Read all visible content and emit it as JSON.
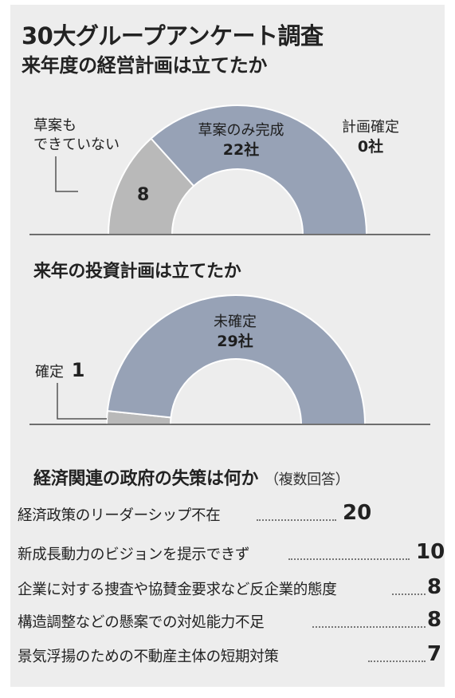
{
  "header": {
    "title": "30大グループアンケート調査",
    "subtitle": "来年度の経営計画は立てたか"
  },
  "chart1": {
    "label_none_line1": "草案も",
    "label_none_line2": "できていない",
    "label_none_value": "8",
    "label_draft_name": "草案のみ完成",
    "label_draft_value": "22社",
    "label_confirmed_name": "計画確定",
    "label_confirmed_value": "0社"
  },
  "chart2": {
    "title": "来年の投資計画は立てたか",
    "label_undecided_name": "未確定",
    "label_undecided_value": "29社",
    "label_decided_name": "確定",
    "label_decided_value": "1"
  },
  "section3": {
    "title": "経済関連の政府の失策は何か",
    "note": "（複数回答）"
  },
  "chart_data": [
    {
      "type": "pie",
      "title": "来年度の経営計画は立てたか",
      "categories": [
        "草案もできていない",
        "草案のみ完成",
        "計画確定"
      ],
      "values": [
        8,
        22,
        0
      ],
      "colors": [
        "#b9b9b9",
        "#97a2b6",
        "#97a2b6"
      ]
    },
    {
      "type": "pie",
      "title": "来年の投資計画は立てたか",
      "categories": [
        "確定",
        "未確定"
      ],
      "values": [
        1,
        29
      ],
      "colors": [
        "#b9b9b9",
        "#97a2b6"
      ]
    },
    {
      "type": "table",
      "title": "経済関連の政府の失策は何か（複数回答）",
      "categories": [
        "経済政策のリーダーシップ不在",
        "新成長動力のビジョンを提示できず",
        "企業に対する捜査や協賛金要求など反企業的態度",
        "構造調整などの懸案での対処能力不足",
        "景気浮揚のための不動産主体の短期対策"
      ],
      "values": [
        20,
        10,
        8,
        8,
        7
      ]
    }
  ],
  "colors": {
    "panel": "#ededed",
    "blue_slice": "#97a2b6",
    "gray_slice": "#b9b9b9",
    "text": "#222222"
  }
}
